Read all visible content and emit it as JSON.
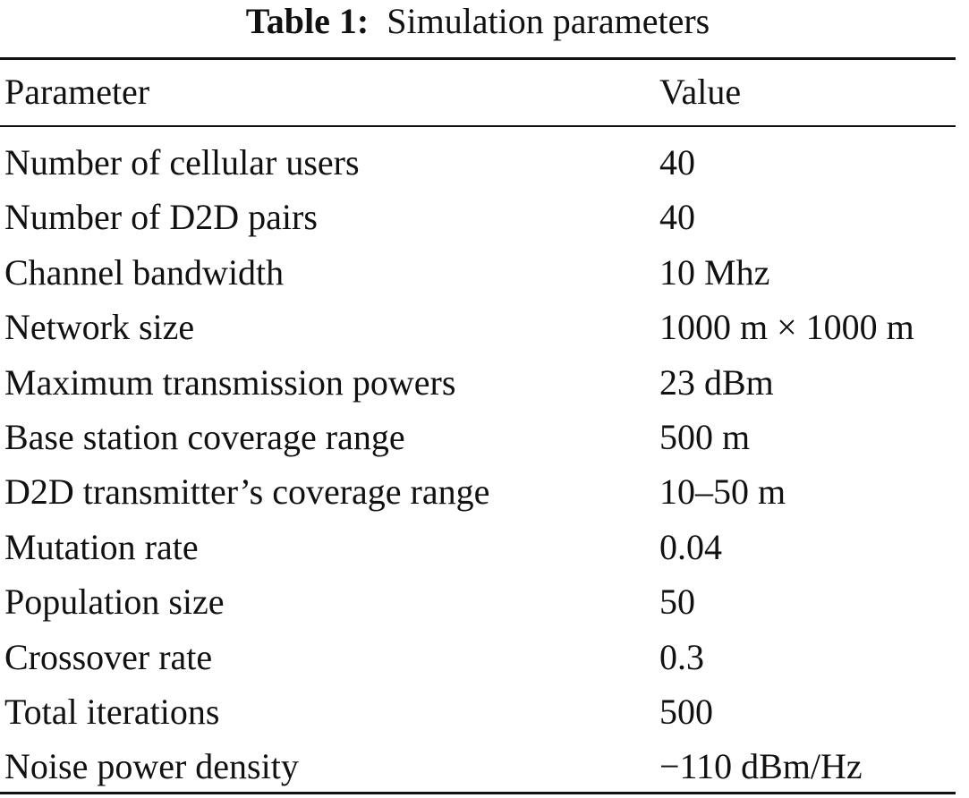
{
  "caption": {
    "label": "Table 1:",
    "title": "Simulation parameters"
  },
  "table": {
    "header": [
      "Parameter",
      "Value"
    ],
    "rows": [
      [
        "Number of cellular users",
        "40"
      ],
      [
        "Number of D2D pairs",
        "40"
      ],
      [
        "Channel bandwidth",
        "10 Mhz"
      ],
      [
        "Network size",
        "1000 m × 1000 m"
      ],
      [
        "Maximum transmission powers",
        "23 dBm"
      ],
      [
        "Base station coverage range",
        "500 m"
      ],
      [
        "D2D transmitter’s coverage range",
        "10–50 m"
      ],
      [
        "Mutation rate",
        "0.04"
      ],
      [
        "Population size",
        "50"
      ],
      [
        "Crossover rate",
        "0.3"
      ],
      [
        "Total iterations",
        "500"
      ],
      [
        "Noise power density",
        "−110 dBm/Hz"
      ]
    ]
  }
}
